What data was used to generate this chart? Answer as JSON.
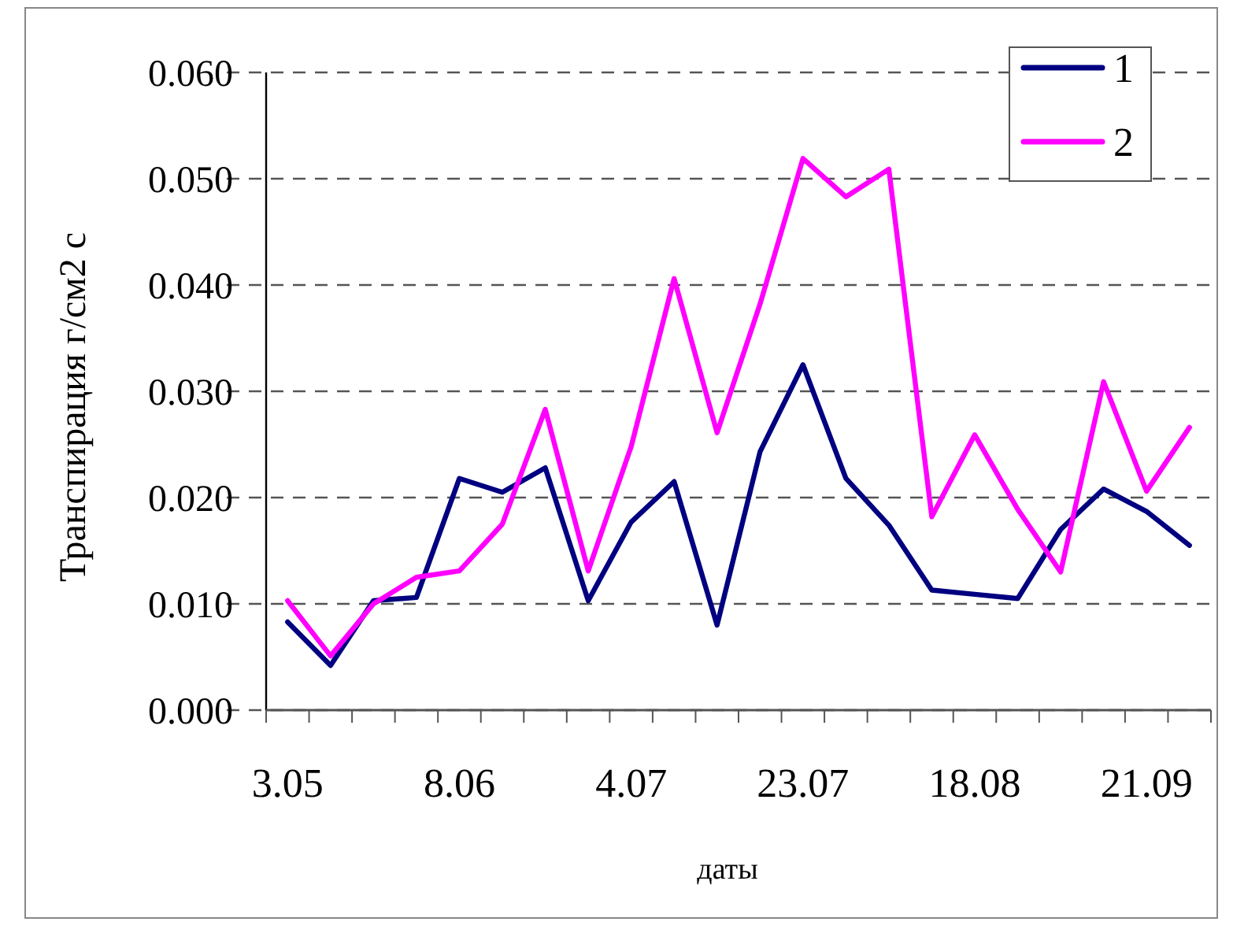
{
  "chart_data": {
    "type": "line",
    "xlabel": "даты",
    "ylabel": "Транспирация  г/см2 с",
    "categories": [
      "3.05",
      null,
      null,
      null,
      "8.06",
      null,
      null,
      null,
      "4.07",
      null,
      null,
      null,
      "23.07",
      null,
      null,
      null,
      "18.08",
      null,
      null,
      null,
      "21.09",
      null
    ],
    "series": [
      {
        "name": "1",
        "color": "#000080",
        "values": [
          0.0083,
          0.0042,
          0.0103,
          0.0106,
          0.0218,
          0.0205,
          0.0228,
          0.0103,
          0.0177,
          0.0215,
          0.008,
          0.0243,
          0.0325,
          0.0218,
          0.0174,
          0.0113,
          0.0109,
          0.0105,
          0.017,
          0.0208,
          0.0187,
          0.0155
        ]
      },
      {
        "name": "2",
        "color": "#ff00ff",
        "values": [
          0.0103,
          0.0051,
          0.01,
          0.0125,
          0.0131,
          0.0175,
          0.0283,
          0.0131,
          0.0248,
          0.0406,
          0.0261,
          0.0382,
          0.0519,
          0.0483,
          0.0509,
          0.0182,
          0.0259,
          0.0189,
          0.013,
          0.0309,
          0.0206,
          0.0266
        ]
      }
    ],
    "ylim": [
      0,
      0.06
    ],
    "yticks": [
      {
        "value": 0,
        "label": "0.000"
      },
      {
        "value": 0.01,
        "label": "0.010"
      },
      {
        "value": 0.02,
        "label": "0.020"
      },
      {
        "value": 0.03,
        "label": "0.030"
      },
      {
        "value": 0.04,
        "label": "0.040"
      },
      {
        "value": 0.05,
        "label": "0.050"
      },
      {
        "value": 0.06,
        "label": "0.060"
      }
    ],
    "grid": "y",
    "legend": "top right",
    "marker": "none",
    "line_style": "solid"
  }
}
